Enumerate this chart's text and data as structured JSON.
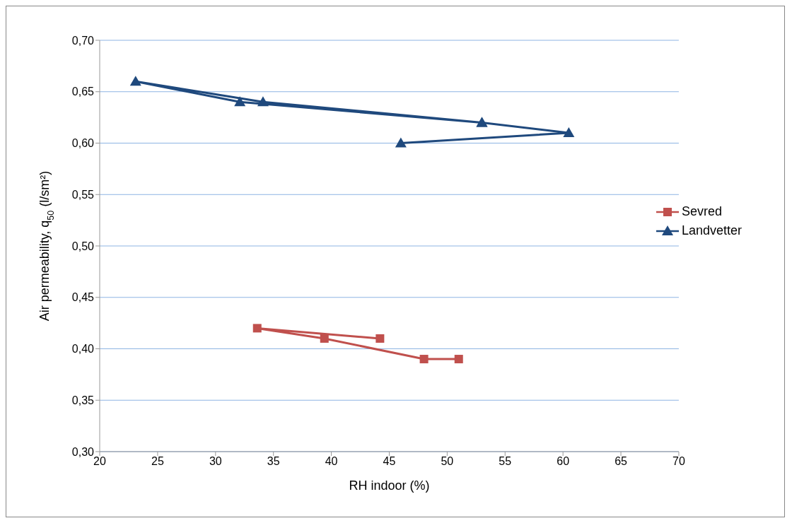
{
  "chart_data": {
    "type": "line",
    "xlabel": "RH indoor (%)",
    "ylabel": "Air permeability, q$_{50}$ (l/sm²)",
    "xlim": [
      20,
      70
    ],
    "xticks": [
      20,
      25,
      30,
      35,
      40,
      45,
      50,
      55,
      60,
      65,
      70
    ],
    "ylim": [
      0.3,
      0.7
    ],
    "yticks": [
      {
        "value": 0.3,
        "label": "0,30"
      },
      {
        "value": 0.35,
        "label": "0,35"
      },
      {
        "value": 0.4,
        "label": "0,40"
      },
      {
        "value": 0.45,
        "label": "0,45"
      },
      {
        "value": 0.5,
        "label": "0,50"
      },
      {
        "value": 0.55,
        "label": "0,55"
      },
      {
        "value": 0.6,
        "label": "0,60"
      },
      {
        "value": 0.65,
        "label": "0,65"
      },
      {
        "value": 0.7,
        "label": "0,70"
      }
    ],
    "grid": "y",
    "legend": "right",
    "line_style": "solid",
    "series": [
      {
        "name": "Sevred",
        "color": "#c0504d",
        "marker": "square",
        "x": [
          44.2,
          33.6,
          39.4,
          48,
          51
        ],
        "values": [
          0.41,
          0.42,
          0.41,
          0.39,
          0.39
        ]
      },
      {
        "name": "Landvetter",
        "color": "#1f497d",
        "marker": "triangle",
        "x": [
          53,
          32.1,
          23.1,
          34.1,
          53,
          60.5,
          46
        ],
        "values": [
          0.62,
          0.64,
          0.66,
          0.64,
          0.62,
          0.61,
          0.6
        ]
      }
    ]
  }
}
